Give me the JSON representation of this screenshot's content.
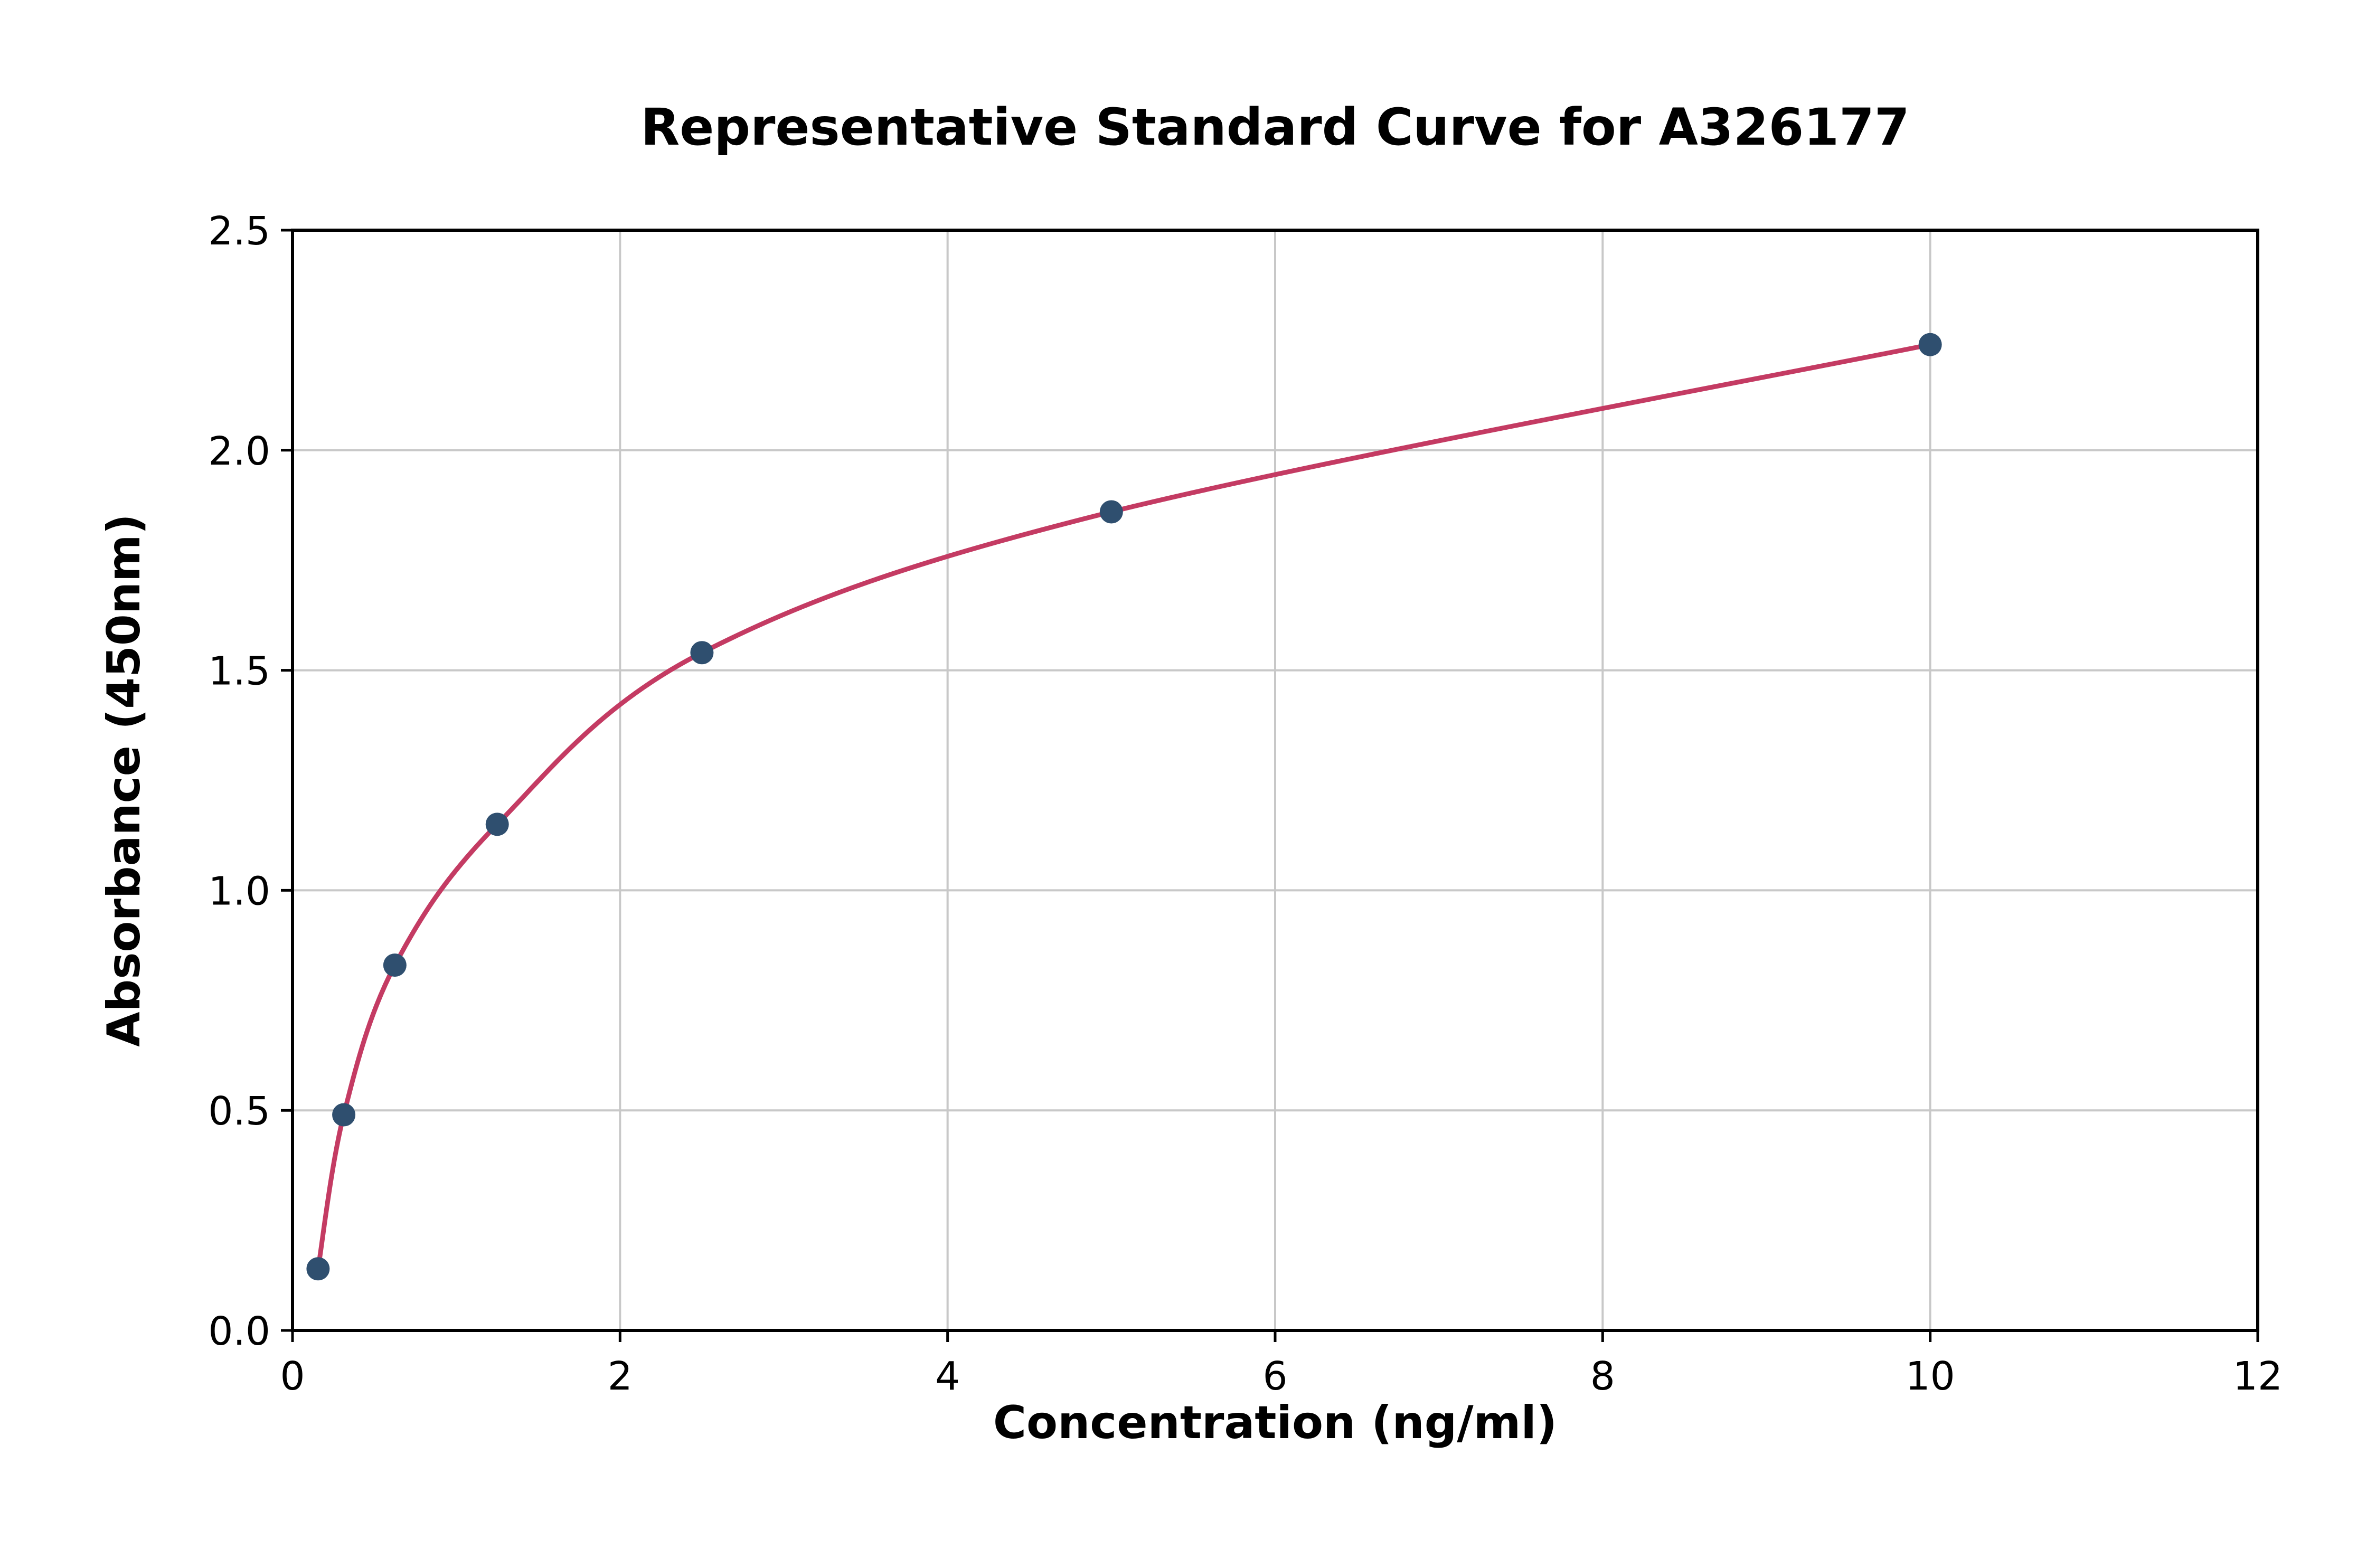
{
  "chart_data": {
    "type": "scatter",
    "title": "Representative Standard Curve for A326177",
    "xlabel": "Concentration (ng/ml)",
    "ylabel": "Absorbance (450nm)",
    "xlim": [
      0,
      12
    ],
    "ylim": [
      0,
      2.5
    ],
    "grid": true,
    "legend": "none",
    "xticks": {
      "values": [
        0,
        2,
        4,
        6,
        8,
        10,
        12
      ],
      "labels": [
        "0",
        "2",
        "4",
        "6",
        "8",
        "10",
        "12"
      ]
    },
    "yticks": {
      "values": [
        0,
        0.5,
        1.0,
        1.5,
        2.0,
        2.5
      ],
      "labels": [
        "0.0",
        "0.5",
        "1.0",
        "1.5",
        "2.0",
        "2.5"
      ]
    },
    "series": [
      {
        "name": "standard-points",
        "type": "scatter",
        "x": [
          0.156,
          0.313,
          0.625,
          1.25,
          2.5,
          5,
          10
        ],
        "y": [
          0.14,
          0.49,
          0.83,
          1.15,
          1.54,
          1.86,
          2.24
        ]
      },
      {
        "name": "fit-curve",
        "type": "line",
        "description": "smooth 4PL-style fitted curve passing through the standard points"
      }
    ],
    "colors": {
      "points": "#2f4f6f",
      "curve": "#c43b63",
      "grid": "#c8c8c8",
      "axes": "#000000",
      "background": "#ffffff"
    }
  }
}
